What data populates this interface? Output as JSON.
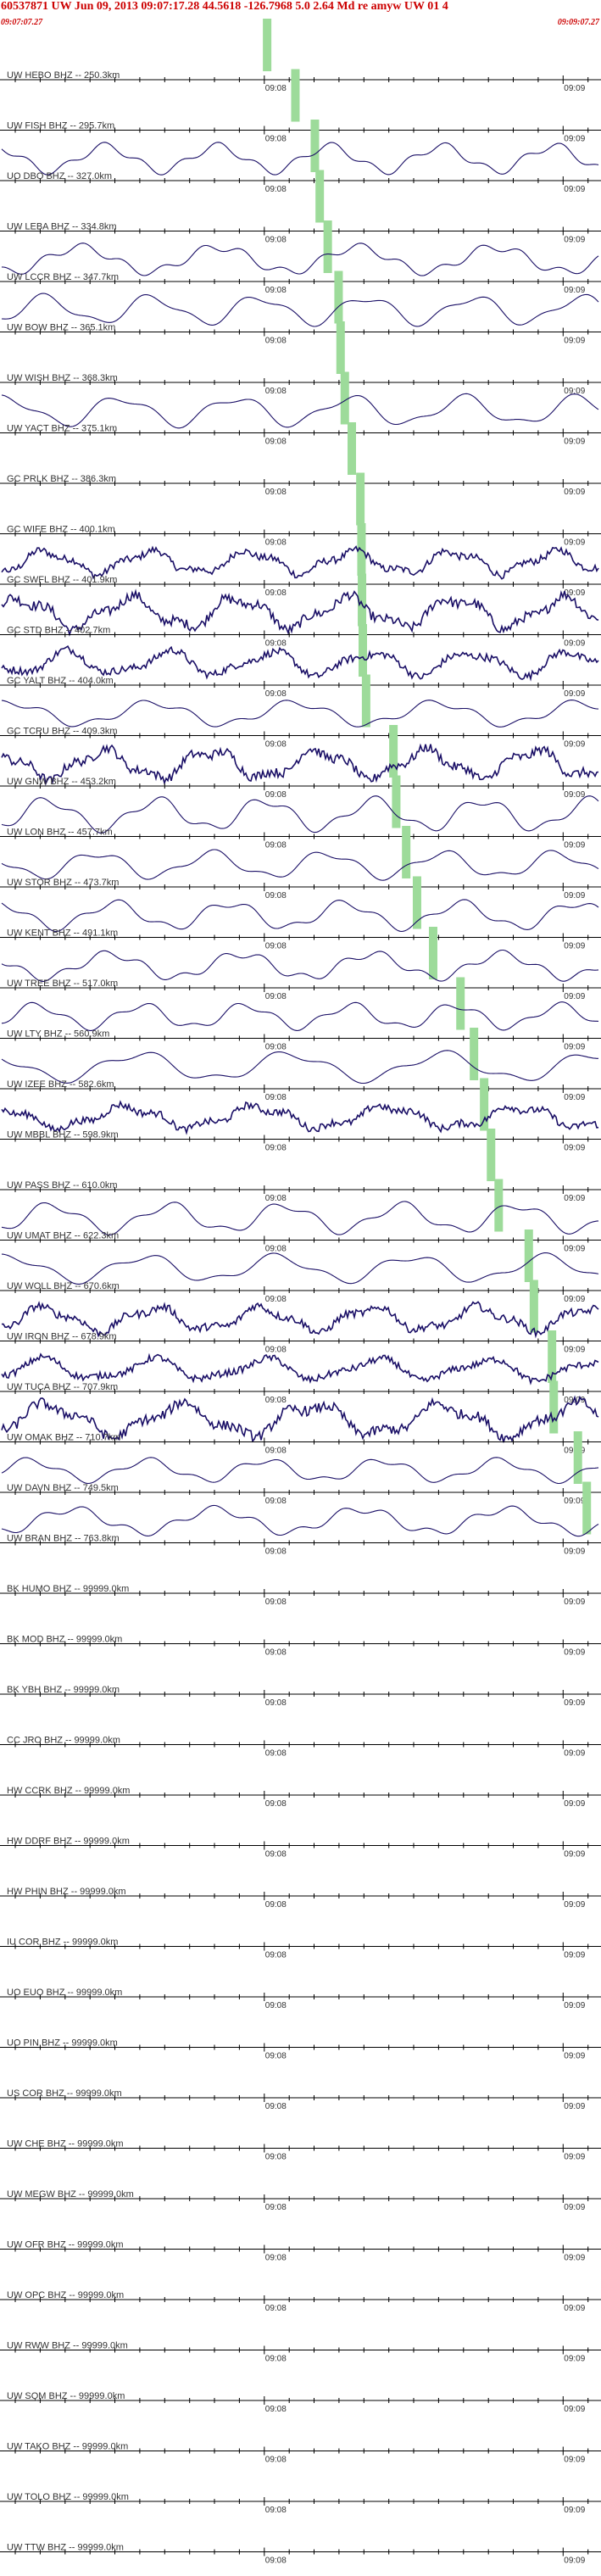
{
  "header": {
    "title": "60537871 UW Jun 09, 2013 09:07:17.28   44.5618 -126.7968  5.0 2.64 Md re amyw UW 01   4",
    "start_time": "09:07:07.27",
    "end_time": "09:09:07.27"
  },
  "colors": {
    "header_text": "#cc0000",
    "trace": "#1a0f66",
    "axis": "#000000",
    "pick_band": "#9ddb9a"
  },
  "chart_data": {
    "type": "line",
    "time_window": [
      "09:07:07.27",
      "09:09:07.27"
    ],
    "time_ticks": [
      "09:08",
      "09:09"
    ],
    "traces": [
      {
        "label": "UW HEBO BHZ -- 250.3km",
        "distance_km": 250.3,
        "has_data": false
      },
      {
        "label": "UW FISH BHZ -- 295.7km",
        "distance_km": 295.7,
        "has_data": false
      },
      {
        "label": "UO DBO BHZ -- 327.0km",
        "distance_km": 327.0,
        "has_data": true
      },
      {
        "label": "UW LEBA BHZ -- 334.8km",
        "distance_km": 334.8,
        "has_data": false
      },
      {
        "label": "UW LCCR BHZ -- 347.7km",
        "distance_km": 347.7,
        "has_data": true
      },
      {
        "label": "UW BOW BHZ -- 365.1km",
        "distance_km": 365.1,
        "has_data": true
      },
      {
        "label": "UW WISH BHZ -- 368.3km",
        "distance_km": 368.3,
        "has_data": false
      },
      {
        "label": "UW YACT BHZ -- 375.1km",
        "distance_km": 375.1,
        "has_data": true
      },
      {
        "label": "GC PRLK BHZ -- 386.3km",
        "distance_km": 386.3,
        "has_data": false
      },
      {
        "label": "GC WIFE BHZ -- 400.1km",
        "distance_km": 400.1,
        "has_data": false
      },
      {
        "label": "GC SWFL BHZ -- 401.9km",
        "distance_km": 401.9,
        "has_data": true
      },
      {
        "label": "GC STD BHZ -- 402.7km",
        "distance_km": 402.7,
        "has_data": true
      },
      {
        "label": "GC YALT BHZ -- 404.0km",
        "distance_km": 404.0,
        "has_data": true
      },
      {
        "label": "GC TCRU BHZ -- 409.3km",
        "distance_km": 409.3,
        "has_data": true
      },
      {
        "label": "UW GNW BHZ -- 453.2km",
        "distance_km": 453.2,
        "has_data": true
      },
      {
        "label": "UW LON BHZ -- 457.7km",
        "distance_km": 457.7,
        "has_data": true
      },
      {
        "label": "UW STOR BHZ -- 473.7km",
        "distance_km": 473.7,
        "has_data": true
      },
      {
        "label": "UW KENT BHZ -- 491.1km",
        "distance_km": 491.1,
        "has_data": true
      },
      {
        "label": "UW TREE BHZ -- 517.0km",
        "distance_km": 517.0,
        "has_data": true
      },
      {
        "label": "UW LTY BHZ -- 560.9km",
        "distance_km": 560.9,
        "has_data": true
      },
      {
        "label": "UW IZEE BHZ -- 582.6km",
        "distance_km": 582.6,
        "has_data": true
      },
      {
        "label": "UW MBBL BHZ -- 598.9km",
        "distance_km": 598.9,
        "has_data": true
      },
      {
        "label": "UW PASS BHZ -- 610.0km",
        "distance_km": 610.0,
        "has_data": false
      },
      {
        "label": "UW UMAT BHZ -- 622.3km",
        "distance_km": 622.3,
        "has_data": true
      },
      {
        "label": "UW WOLL BHZ -- 670.6km",
        "distance_km": 670.6,
        "has_data": true
      },
      {
        "label": "UW IRON BHZ -- 678.9km",
        "distance_km": 678.9,
        "has_data": true
      },
      {
        "label": "UW TUCA BHZ -- 707.9km",
        "distance_km": 707.9,
        "has_data": true
      },
      {
        "label": "UW OMAK BHZ -- 710.7km",
        "distance_km": 710.7,
        "has_data": true
      },
      {
        "label": "UW DAVN BHZ -- 749.5km",
        "distance_km": 749.5,
        "has_data": true
      },
      {
        "label": "UW BRAN BHZ -- 763.8km",
        "distance_km": 763.8,
        "has_data": true
      },
      {
        "label": "BK HUMO BHZ -- 99999.0km",
        "distance_km": 99999.0,
        "has_data": false
      },
      {
        "label": "BK MOD BHZ -- 99999.0km",
        "distance_km": 99999.0,
        "has_data": false
      },
      {
        "label": "BK YBH BHZ -- 99999.0km",
        "distance_km": 99999.0,
        "has_data": false
      },
      {
        "label": "CC JRO BHZ -- 99999.0km",
        "distance_km": 99999.0,
        "has_data": false
      },
      {
        "label": "HW CCRK BHZ -- 99999.0km",
        "distance_km": 99999.0,
        "has_data": false
      },
      {
        "label": "HW DDRF BHZ -- 99999.0km",
        "distance_km": 99999.0,
        "has_data": false
      },
      {
        "label": "HW PHIN BHZ -- 99999.0km",
        "distance_km": 99999.0,
        "has_data": false
      },
      {
        "label": "IU COR BHZ -- 99999.0km",
        "distance_km": 99999.0,
        "has_data": false
      },
      {
        "label": "UO EUO BHZ -- 99999.0km",
        "distance_km": 99999.0,
        "has_data": false
      },
      {
        "label": "UO PIN BHZ -- 99999.0km",
        "distance_km": 99999.0,
        "has_data": false
      },
      {
        "label": "US COR BHZ -- 99999.0km",
        "distance_km": 99999.0,
        "has_data": false
      },
      {
        "label": "UW CHE BHZ -- 99999.0km",
        "distance_km": 99999.0,
        "has_data": false
      },
      {
        "label": "UW MEGW BHZ -- 99999.0km",
        "distance_km": 99999.0,
        "has_data": false
      },
      {
        "label": "UW OFR BHZ -- 99999.0km",
        "distance_km": 99999.0,
        "has_data": false
      },
      {
        "label": "UW OPC BHZ -- 99999.0km",
        "distance_km": 99999.0,
        "has_data": false
      },
      {
        "label": "UW RWW BHZ -- 99999.0km",
        "distance_km": 99999.0,
        "has_data": false
      },
      {
        "label": "UW SQM BHZ -- 99999.0km",
        "distance_km": 99999.0,
        "has_data": false
      },
      {
        "label": "UW TAKO BHZ -- 99999.0km",
        "distance_km": 99999.0,
        "has_data": false
      },
      {
        "label": "UW TOLO BHZ -- 99999.0km",
        "distance_km": 99999.0,
        "has_data": false
      },
      {
        "label": "UW TTW BHZ -- 99999.0km",
        "distance_km": 99999.0,
        "has_data": false
      }
    ]
  }
}
